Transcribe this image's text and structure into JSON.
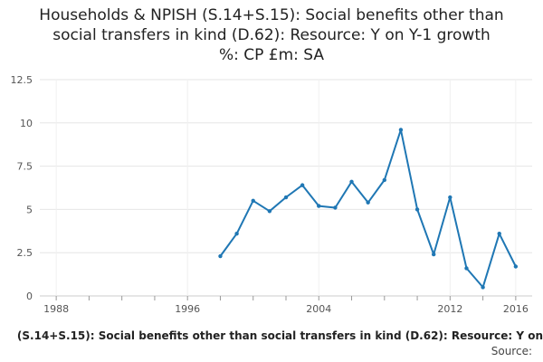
{
  "chart_data": {
    "type": "line",
    "title_lines": [
      "Households & NPISH (S.14+S.15): Social benefits other than",
      "social transfers in kind (D.62): Resource: Y on Y-1 growth",
      "%: CP £m: SA"
    ],
    "xlabel": "(S.14+S.15): Social benefits other than social transfers in kind (D.62): Resource: Y on",
    "ylabel": "",
    "source_label": "Source:",
    "x_ticks": [
      "1988",
      "1996",
      "2004",
      "2012",
      "2016"
    ],
    "y_ticks": [
      "0",
      "2.5",
      "5",
      "7.5",
      "10",
      "12.5"
    ],
    "xlim": [
      1987,
      2017
    ],
    "ylim": [
      0,
      12.5
    ],
    "x": [
      1998,
      1999,
      2000,
      2001,
      2002,
      2003,
      2004,
      2005,
      2006,
      2007,
      2008,
      2009,
      2010,
      2011,
      2012,
      2013,
      2014,
      2015,
      2016
    ],
    "values": [
      2.3,
      3.6,
      5.5,
      4.9,
      5.7,
      6.4,
      5.2,
      5.1,
      6.6,
      5.4,
      6.7,
      9.6,
      5.0,
      2.4,
      5.7,
      1.6,
      0.5,
      3.6,
      1.7
    ],
    "line_color": "#1f77b4"
  }
}
